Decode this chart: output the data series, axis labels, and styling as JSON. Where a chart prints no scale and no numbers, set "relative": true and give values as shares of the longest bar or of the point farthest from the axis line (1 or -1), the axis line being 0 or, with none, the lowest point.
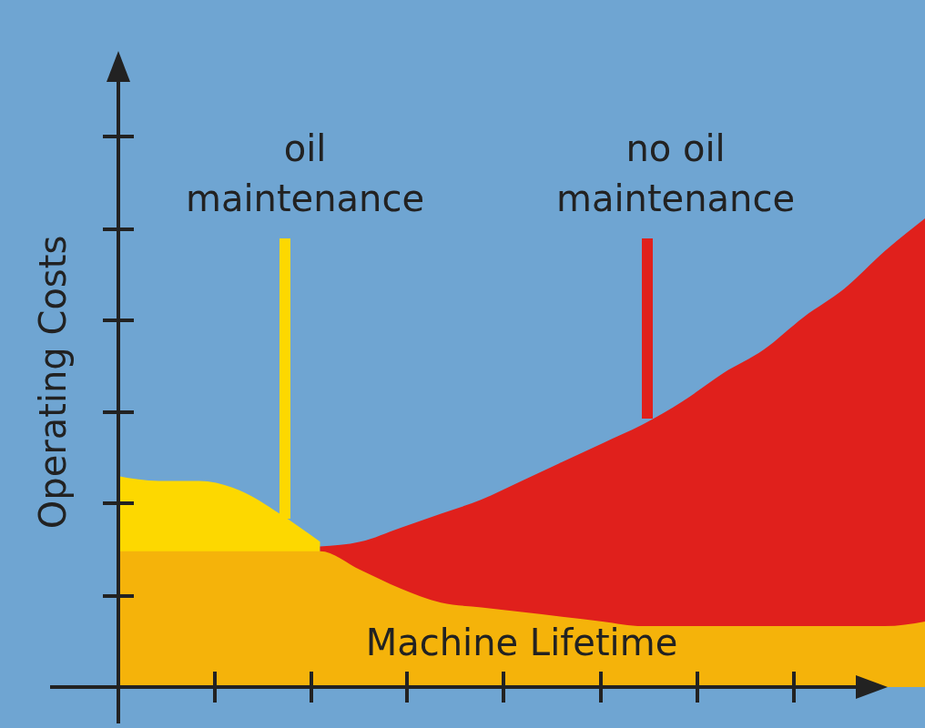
{
  "chart_data": {
    "type": "area",
    "relative": true,
    "xlabel": "Machine Lifetime",
    "ylabel": "Operating Costs",
    "categories": [
      null,
      null,
      null,
      null,
      null,
      null,
      null,
      null,
      null,
      null,
      null,
      null,
      null,
      null,
      null,
      null,
      null,
      null,
      null,
      null,
      null
    ],
    "series": [
      {
        "name": "oil maintenance",
        "color": "#fdd800",
        "values": [
          0.45,
          0.44,
          0.44,
          0.42,
          0.37,
          0.31,
          null,
          null,
          null,
          null,
          null,
          null,
          null,
          null,
          null,
          null,
          null,
          null,
          null,
          null,
          null
        ]
      },
      {
        "name": "no oil maintenance",
        "color": "#e0201c",
        "values": [
          null,
          null,
          null,
          null,
          null,
          0.3,
          0.31,
          0.34,
          0.37,
          0.4,
          0.44,
          0.48,
          0.52,
          0.56,
          0.61,
          0.67,
          0.72,
          0.79,
          0.85,
          0.93,
          1
        ]
      },
      {
        "color": "#f5b30a",
        "values": [
          0.29,
          0.29,
          0.29,
          0.29,
          0.29,
          0.29,
          0.25,
          0.21,
          0.18,
          0.17,
          0.16,
          0.15,
          0.14,
          0.13,
          0.13,
          0.13,
          0.13,
          0.13,
          0.13,
          0.13,
          0.14
        ]
      }
    ]
  }
}
